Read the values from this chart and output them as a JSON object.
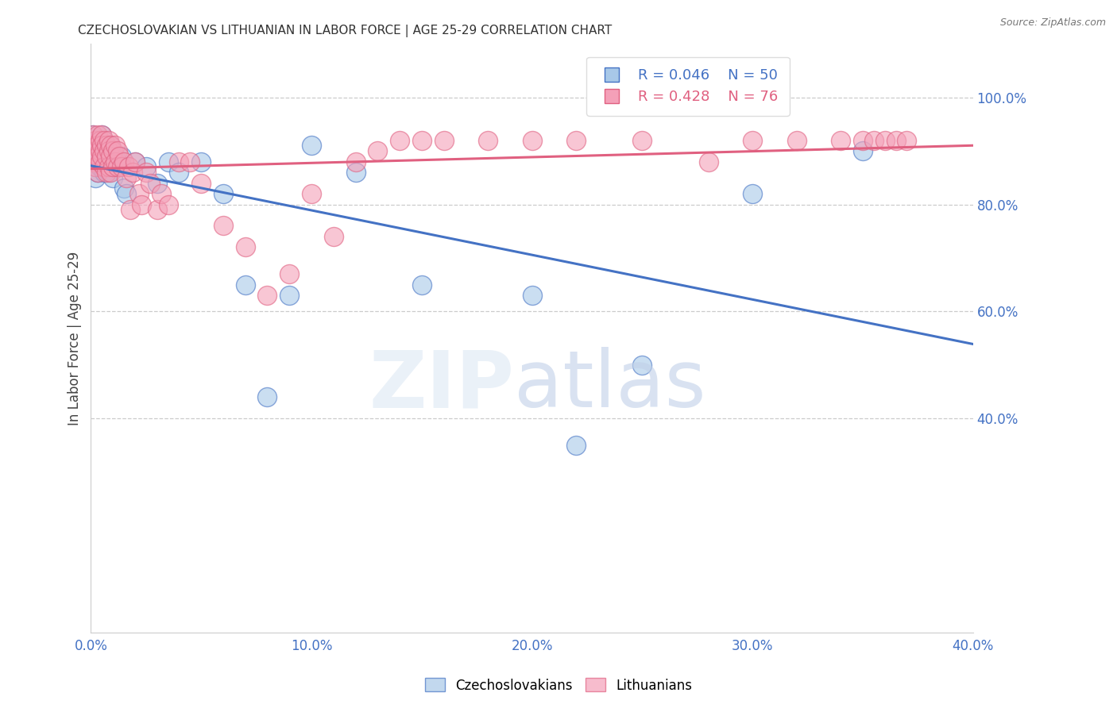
{
  "title": "CZECHOSLOVAKIAN VS LITHUANIAN IN LABOR FORCE | AGE 25-29 CORRELATION CHART",
  "source": "Source: ZipAtlas.com",
  "ylabel": "In Labor Force | Age 25-29",
  "xlim": [
    0.0,
    0.4
  ],
  "ylim": [
    0.0,
    1.1
  ],
  "yticks_right": [
    0.4,
    0.6,
    0.8,
    1.0
  ],
  "ytick_labels_right": [
    "40.0%",
    "60.0%",
    "80.0%",
    "100.0%"
  ],
  "xticks": [
    0.0,
    0.05,
    0.1,
    0.15,
    0.2,
    0.25,
    0.3,
    0.35,
    0.4
  ],
  "xtick_labels": [
    "0.0%",
    "",
    "10.0%",
    "",
    "20.0%",
    "",
    "30.0%",
    "",
    "40.0%"
  ],
  "blue_color": "#a8c8e8",
  "pink_color": "#f4a0b8",
  "blue_edge_color": "#4472c4",
  "pink_edge_color": "#e06080",
  "blue_line_color": "#4472c4",
  "pink_line_color": "#e06080",
  "legend_blue_r": "R = 0.046",
  "legend_blue_n": "N = 50",
  "legend_pink_r": "R = 0.428",
  "legend_pink_n": "N = 76",
  "axis_color": "#4472c4",
  "blue_x": [
    0.001,
    0.001,
    0.002,
    0.002,
    0.002,
    0.003,
    0.003,
    0.003,
    0.003,
    0.004,
    0.004,
    0.004,
    0.005,
    0.005,
    0.005,
    0.006,
    0.006,
    0.006,
    0.007,
    0.007,
    0.008,
    0.008,
    0.009,
    0.009,
    0.01,
    0.01,
    0.011,
    0.012,
    0.013,
    0.014,
    0.015,
    0.016,
    0.02,
    0.025,
    0.03,
    0.035,
    0.04,
    0.05,
    0.06,
    0.07,
    0.08,
    0.09,
    0.1,
    0.12,
    0.15,
    0.2,
    0.22,
    0.25,
    0.3,
    0.35
  ],
  "blue_y": [
    0.93,
    0.88,
    0.91,
    0.87,
    0.85,
    0.92,
    0.9,
    0.88,
    0.86,
    0.91,
    0.89,
    0.87,
    0.93,
    0.9,
    0.88,
    0.91,
    0.88,
    0.86,
    0.9,
    0.87,
    0.89,
    0.86,
    0.91,
    0.88,
    0.87,
    0.85,
    0.89,
    0.88,
    0.87,
    0.89,
    0.83,
    0.82,
    0.88,
    0.87,
    0.84,
    0.88,
    0.86,
    0.88,
    0.82,
    0.65,
    0.44,
    0.63,
    0.91,
    0.86,
    0.65,
    0.63,
    0.35,
    0.5,
    0.82,
    0.9
  ],
  "pink_x": [
    0.001,
    0.001,
    0.001,
    0.002,
    0.002,
    0.002,
    0.003,
    0.003,
    0.003,
    0.003,
    0.004,
    0.004,
    0.004,
    0.005,
    0.005,
    0.005,
    0.006,
    0.006,
    0.006,
    0.007,
    0.007,
    0.007,
    0.008,
    0.008,
    0.008,
    0.009,
    0.009,
    0.009,
    0.01,
    0.01,
    0.011,
    0.011,
    0.012,
    0.012,
    0.013,
    0.014,
    0.015,
    0.016,
    0.017,
    0.018,
    0.019,
    0.02,
    0.022,
    0.023,
    0.025,
    0.027,
    0.03,
    0.032,
    0.035,
    0.04,
    0.045,
    0.05,
    0.06,
    0.07,
    0.08,
    0.09,
    0.1,
    0.11,
    0.12,
    0.13,
    0.14,
    0.15,
    0.16,
    0.18,
    0.2,
    0.22,
    0.25,
    0.28,
    0.3,
    0.32,
    0.34,
    0.35,
    0.355,
    0.36,
    0.365,
    0.37
  ],
  "pink_y": [
    0.93,
    0.91,
    0.88,
    0.92,
    0.9,
    0.87,
    0.93,
    0.91,
    0.89,
    0.86,
    0.92,
    0.9,
    0.88,
    0.93,
    0.91,
    0.89,
    0.92,
    0.9,
    0.87,
    0.91,
    0.89,
    0.86,
    0.92,
    0.9,
    0.87,
    0.91,
    0.89,
    0.86,
    0.9,
    0.87,
    0.91,
    0.88,
    0.9,
    0.87,
    0.89,
    0.87,
    0.88,
    0.85,
    0.87,
    0.79,
    0.86,
    0.88,
    0.82,
    0.8,
    0.86,
    0.84,
    0.79,
    0.82,
    0.8,
    0.88,
    0.88,
    0.84,
    0.76,
    0.72,
    0.63,
    0.67,
    0.82,
    0.74,
    0.88,
    0.9,
    0.92,
    0.92,
    0.92,
    0.92,
    0.92,
    0.92,
    0.92,
    0.88,
    0.92,
    0.92,
    0.92,
    0.92,
    0.92,
    0.92,
    0.92,
    0.92
  ]
}
